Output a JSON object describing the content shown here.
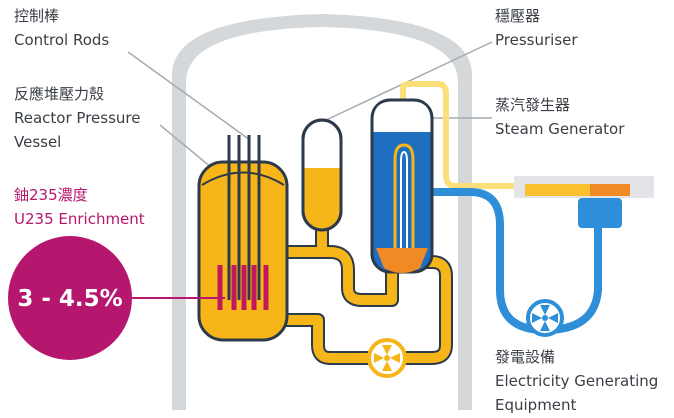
{
  "labels": [
    {
      "zh": "控制棒",
      "en": [
        "Control Rods"
      ]
    },
    {
      "zh": "反應堆壓力殼",
      "en": [
        "Reactor Pressure",
        "Vessel"
      ]
    },
    {
      "zh": "鈾235濃度",
      "en": [
        "U235 Enrichment"
      ],
      "value": "3 - 4.5%"
    },
    {
      "zh": "穩壓器",
      "en": [
        "Pressuriser"
      ]
    },
    {
      "zh": "蒸汽發生器",
      "en": [
        "Steam Generator"
      ]
    },
    {
      "zh": "發電設備",
      "en": [
        "Electricity Generating",
        "Equipment"
      ]
    }
  ]
}
